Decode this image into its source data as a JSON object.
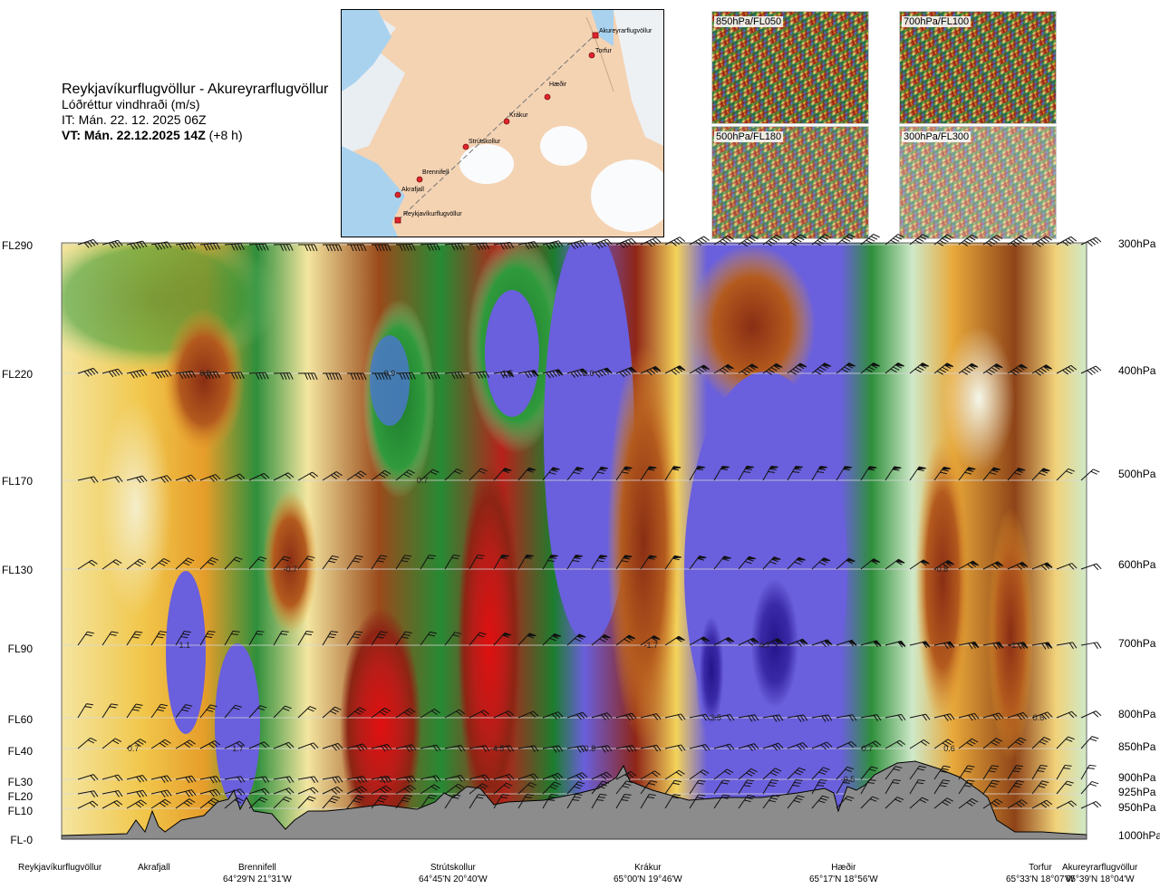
{
  "header": {
    "route": "Reykjavíkurflugvöllur - Akureyrarflugvöllur",
    "subtitle": "Lóðréttur vindhraði (m/s)",
    "it_line": "IT: Mán. 22. 12. 2025 06Z",
    "vt_bold": "VT: Mán. 22.12.2025 14Z",
    "vt_offset": "(+8 h)"
  },
  "map": {
    "places": [
      {
        "name": "Akureyrarflugvöllur",
        "kind": "airport"
      },
      {
        "name": "Torfur",
        "kind": "point"
      },
      {
        "name": "Hæðir",
        "kind": "point"
      },
      {
        "name": "Krákur",
        "kind": "point"
      },
      {
        "name": "Strútskollur",
        "kind": "point"
      },
      {
        "name": "Brennifell",
        "kind": "point"
      },
      {
        "name": "Akrafjall",
        "kind": "point"
      },
      {
        "name": "Reykjavíkurflugvöllur",
        "kind": "airport"
      }
    ]
  },
  "thumbnails": [
    {
      "label": "850hPa/FL050"
    },
    {
      "label": "700hPa/FL100"
    },
    {
      "label": "500hPa/FL180"
    },
    {
      "label": "300hPa/FL300"
    }
  ],
  "chart_data": {
    "type": "heatmap",
    "variable": "Lóðréttur vindhraði (m/s)",
    "levels_left": [
      "FL290",
      "FL220",
      "FL170",
      "FL130",
      "FL90",
      "FL60",
      "FL40",
      "FL30",
      "FL20",
      "FL10",
      "FL-0"
    ],
    "levels_right": [
      "300hPa",
      "400hPa",
      "500hPa",
      "600hPa",
      "700hPa",
      "800hPa",
      "850hPa",
      "900hPa",
      "925hPa",
      "950hPa",
      "1000hPa"
    ],
    "value_labels": [
      {
        "text": "0.5",
        "x": 0.14,
        "level": "FL220"
      },
      {
        "text": "0.9",
        "x": 0.32,
        "level": "FL220"
      },
      {
        "text": "1.5",
        "x": 0.435,
        "level": "FL220"
      },
      {
        "text": "2.0",
        "x": 0.514,
        "level": "FL220"
      },
      {
        "text": "0.7",
        "x": 0.352,
        "level": "FL170"
      },
      {
        "text": "-0.7",
        "x": 0.223,
        "level": "FL130"
      },
      {
        "text": "-0.8",
        "x": 0.858,
        "level": "FL130"
      },
      {
        "text": "1.1",
        "x": 0.12,
        "level": "FL90"
      },
      {
        "text": "-1.7",
        "x": 0.575,
        "level": "FL90"
      },
      {
        "text": "4.7",
        "x": 0.686,
        "level": "FL90"
      },
      {
        "text": "-1.0",
        "x": 0.931,
        "level": "FL90"
      },
      {
        "text": "3.5",
        "x": 0.638,
        "level": "FL60"
      },
      {
        "text": "0.6",
        "x": 0.953,
        "level": "FL60"
      },
      {
        "text": "0.7",
        "x": 0.07,
        "level": "FL40"
      },
      {
        "text": "1.7",
        "x": 0.172,
        "level": "FL40"
      },
      {
        "text": "-4.5",
        "x": 0.425,
        "level": "FL40"
      },
      {
        "text": "-0.8",
        "x": 0.514,
        "level": "FL40"
      },
      {
        "text": "0.7",
        "x": 0.786,
        "level": "FL40"
      },
      {
        "text": "0.6",
        "x": 0.866,
        "level": "FL40"
      },
      {
        "text": "-2.6",
        "x": 0.314,
        "level": "FL30"
      },
      {
        "text": "-0.5",
        "x": 0.767,
        "level": "FL30"
      }
    ],
    "locations": [
      {
        "name": "Reykjavíkurflugvöllur",
        "coord": ""
      },
      {
        "name": "Akrafjall",
        "coord": ""
      },
      {
        "name": "Brennifell",
        "coord": "64°29'N 21°31'W"
      },
      {
        "name": "Strútskollur",
        "coord": "64°45'N 20°40'W"
      },
      {
        "name": "Krákur",
        "coord": "65°00'N 19°46'W"
      },
      {
        "name": "Hæðir",
        "coord": "65°17'N 18°56'W"
      },
      {
        "name": "Torfur",
        "coord": "65°33'N 18°07'W"
      },
      {
        "name": "Akureyrarflugvöllur",
        "coord": "65°39'N 18°04'W"
      }
    ],
    "legend": "none",
    "grid": true
  }
}
